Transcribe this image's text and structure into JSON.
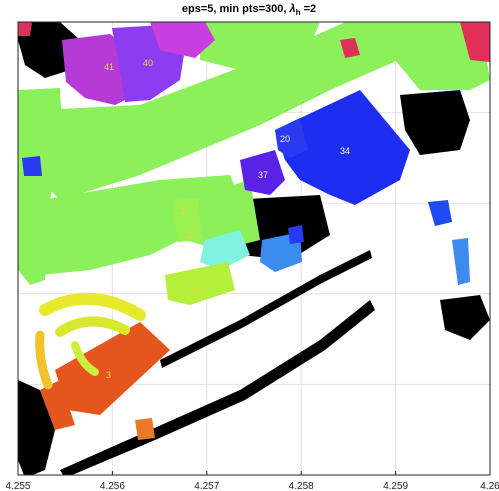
{
  "chart_data": {
    "type": "scatter",
    "title_prefix": "eps=5, min pts=300, ",
    "title_lambda": "λ",
    "title_sub": "h",
    "title_suffix": " =2",
    "xlabel": "",
    "ylabel": "",
    "xlim": [
      4.255,
      4.26
    ],
    "xticks": [
      4.255,
      4.256,
      4.257,
      4.258,
      4.259,
      4.26
    ],
    "xtick_labels": [
      "4.255",
      "4.256",
      "4.257",
      "4.258",
      "4.259",
      "4.26"
    ],
    "grid": true,
    "colors": {
      "noise": "#000000",
      "green": "#8cf05a",
      "magenta": "#b63ad6",
      "purple": "#8d3cf0",
      "blue": "#1d2ef2",
      "violet": "#5a22e6",
      "orange": "#e4561e",
      "yellow": "#e6ea2a",
      "gold": "#f2c12e",
      "lime": "#b4f03c",
      "cyan": "#7ff2e0",
      "sky": "#3c8cf0",
      "crimson": "#e0305a"
    },
    "cluster_labels": [
      {
        "text": "41",
        "color": "gold"
      },
      {
        "text": "40",
        "color": "gold"
      },
      {
        "text": "20",
        "color": "light"
      },
      {
        "text": "34",
        "color": "light"
      },
      {
        "text": "37",
        "color": "light"
      },
      {
        "text": "1",
        "color": "gold"
      },
      {
        "text": "2",
        "color": "gold"
      },
      {
        "text": "15",
        "color": "gold"
      },
      {
        "text": "3",
        "color": "gold"
      }
    ]
  }
}
